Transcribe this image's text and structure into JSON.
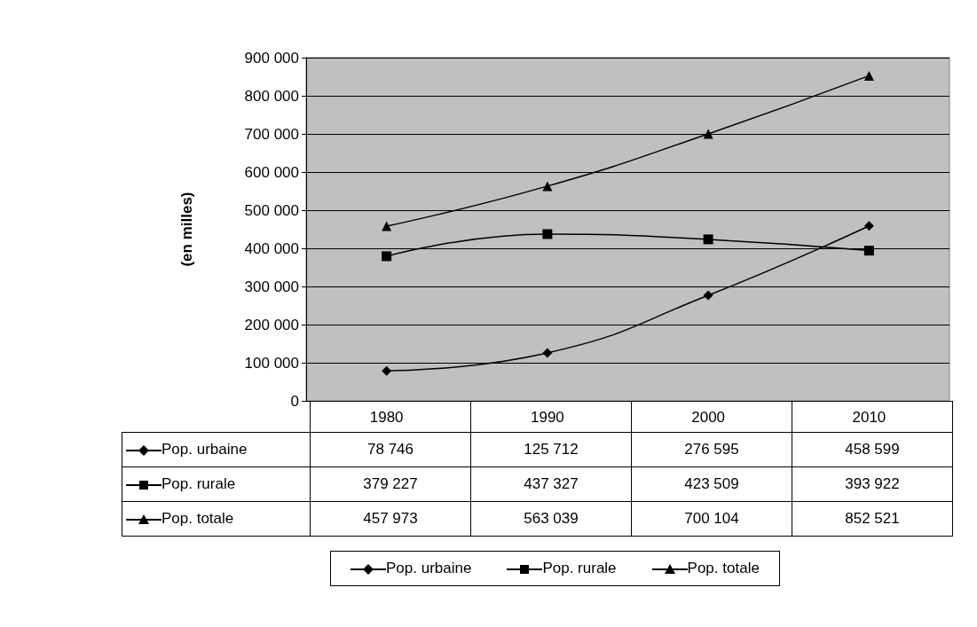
{
  "chart_data": {
    "type": "line",
    "ylabel": "(en milles)",
    "categories": [
      "1980",
      "1990",
      "2000",
      "2010"
    ],
    "series": [
      {
        "name": "Pop. urbaine",
        "color": "#000000",
        "marker": "diamond",
        "values": [
          78746,
          125712,
          276595,
          458599
        ]
      },
      {
        "name": "Pop. rurale",
        "color": "#000000",
        "marker": "square",
        "values": [
          379227,
          437327,
          423509,
          393922
        ]
      },
      {
        "name": "Pop. totale",
        "color": "#000000",
        "marker": "triangle",
        "values": [
          457973,
          563039,
          700104,
          852521
        ]
      }
    ],
    "ylim": [
      0,
      900000
    ],
    "yticks": [
      {
        "value": 0,
        "label": "0"
      },
      {
        "value": 100000,
        "label": "100 000"
      },
      {
        "value": 200000,
        "label": "200 000"
      },
      {
        "value": 300000,
        "label": "300 000"
      },
      {
        "value": 400000,
        "label": "400 000"
      },
      {
        "value": 500000,
        "label": "500 000"
      },
      {
        "value": 600000,
        "label": "600 000"
      },
      {
        "value": 700000,
        "label": "700 000"
      },
      {
        "value": 800000,
        "label": "800 000"
      },
      {
        "value": 900000,
        "label": "900 000"
      }
    ],
    "grid": "y",
    "legend": "bottom",
    "data_labels": true,
    "line_style": "solid"
  }
}
